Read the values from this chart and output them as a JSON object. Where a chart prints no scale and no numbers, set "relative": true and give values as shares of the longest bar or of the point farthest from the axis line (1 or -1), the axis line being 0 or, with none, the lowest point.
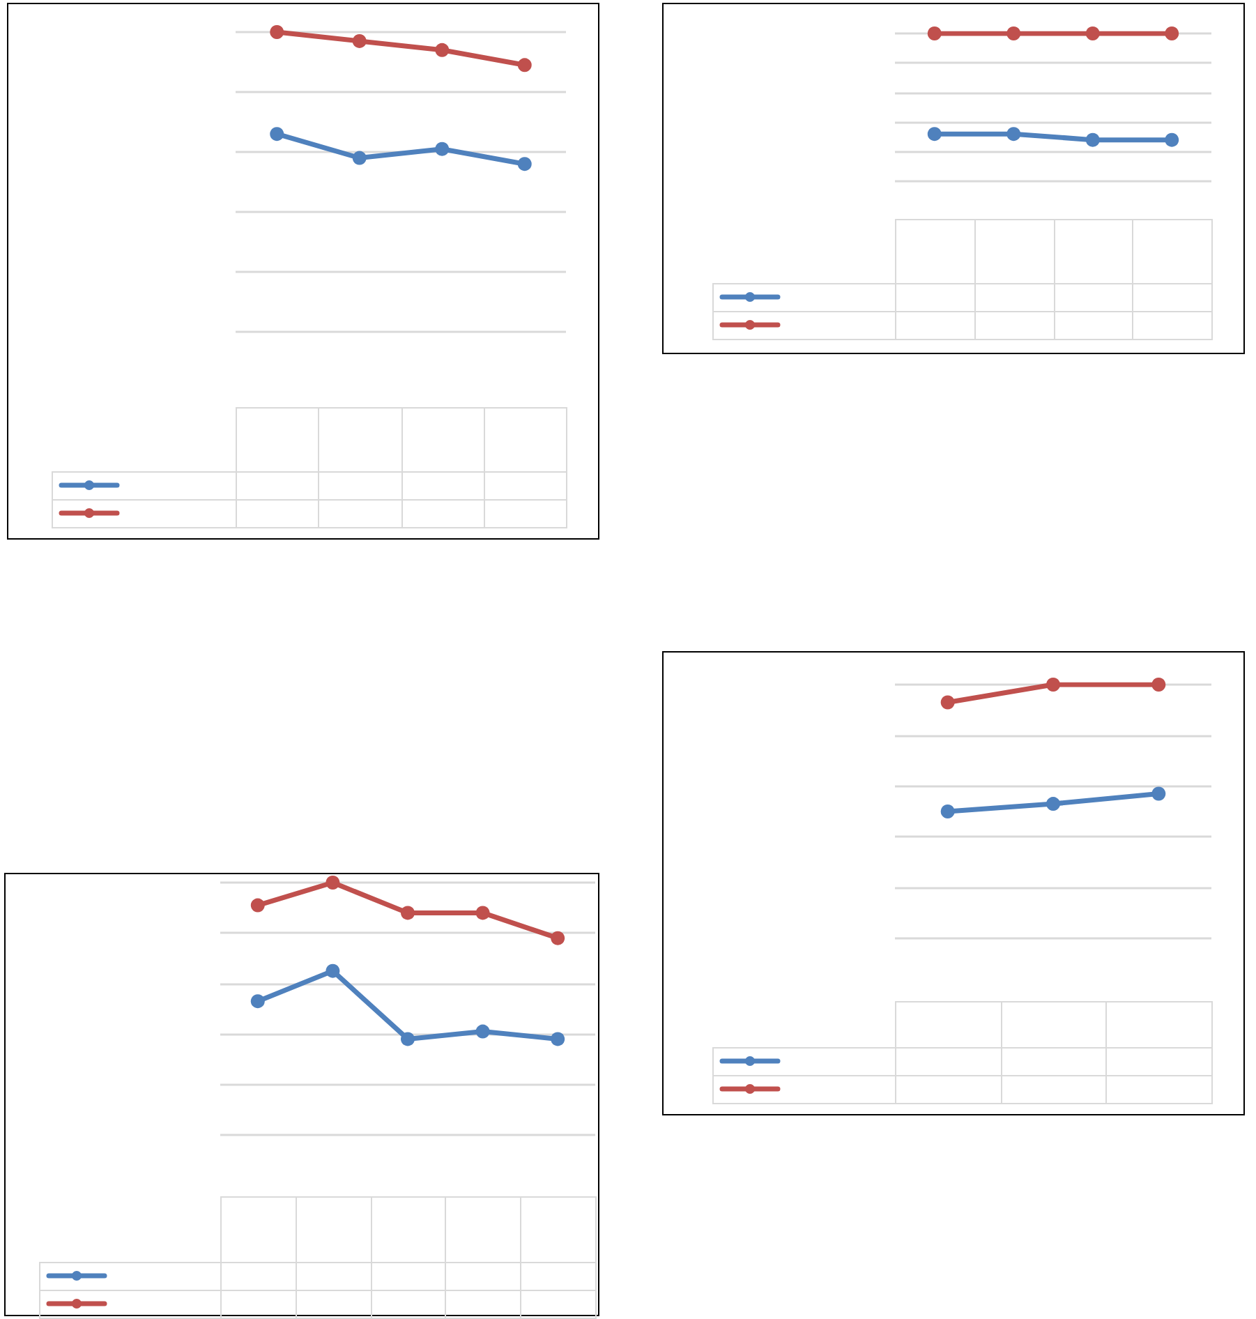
{
  "chart_data": [
    {
      "type": "line",
      "categories": [
        null,
        null,
        null,
        null
      ],
      "relative": true,
      "grid": "y",
      "marker": "circle",
      "series": [
        {
          "color": "#4f81bd",
          "values": [
            0.66,
            0.58,
            0.61,
            0.56
          ]
        },
        {
          "color": "#c0504d",
          "values": [
            1,
            0.97,
            0.94,
            0.89
          ]
        }
      ]
    },
    {
      "type": "line",
      "categories": [
        null,
        null,
        null,
        null
      ],
      "relative": true,
      "grid": "y",
      "marker": "circle",
      "series": [
        {
          "color": "#4f81bd",
          "values": [
            0.32,
            0.32,
            0.28,
            0.28
          ]
        },
        {
          "color": "#c0504d",
          "values": [
            1,
            1,
            1,
            1
          ]
        }
      ]
    },
    {
      "type": "line",
      "categories": [
        null,
        null,
        null,
        null,
        null
      ],
      "relative": true,
      "grid": "y",
      "marker": "circle",
      "series": [
        {
          "color": "#4f81bd",
          "values": [
            0.53,
            0.65,
            0.38,
            0.41,
            0.38
          ]
        },
        {
          "color": "#c0504d",
          "values": [
            0.91,
            1,
            0.88,
            0.88,
            0.78
          ]
        }
      ]
    },
    {
      "type": "line",
      "categories": [
        null,
        null,
        null
      ],
      "relative": true,
      "grid": "y",
      "marker": "circle",
      "series": [
        {
          "color": "#4f81bd",
          "values": [
            0.5,
            0.53,
            0.57
          ]
        },
        {
          "color": "#c0504d",
          "values": [
            0.93,
            1,
            1
          ]
        }
      ]
    }
  ]
}
